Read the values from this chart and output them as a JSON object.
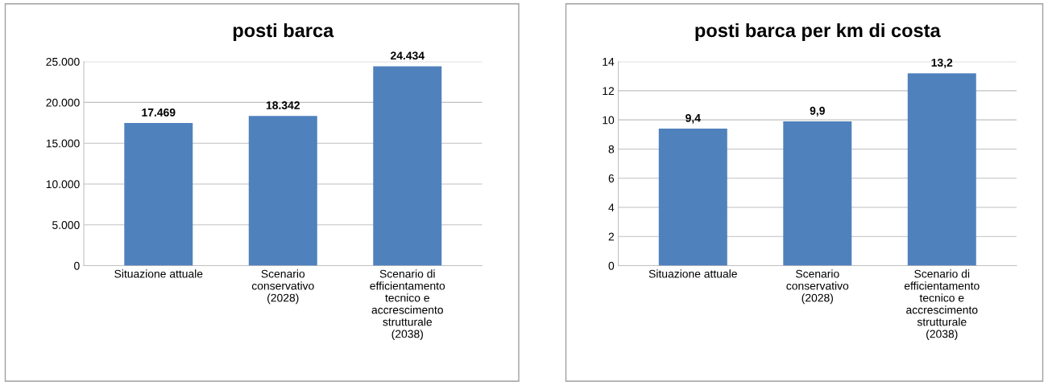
{
  "chart_data": [
    {
      "type": "bar",
      "title": "posti barca",
      "categories": [
        "Situazione attuale",
        "Scenario\nconservativo\n(2028)",
        "Scenario di\nefficientamento\ntecnico e\naccrescimento\nstrutturale\n(2038)"
      ],
      "values": [
        17469,
        18342,
        24434
      ],
      "value_labels": [
        "17.469",
        "18.342",
        "24.434"
      ],
      "color": "#4f81bd",
      "ylim": [
        0,
        25000
      ],
      "yticks": [
        0,
        {
          "value": 5000,
          "label": "5.000"
        },
        {
          "value": 10000,
          "label": "10.000"
        },
        {
          "value": 15000,
          "label": "15.000"
        },
        {
          "value": 20000,
          "label": "20.000"
        },
        {
          "value": 25000,
          "label": "25.000"
        }
      ],
      "grid": "y"
    },
    {
      "type": "bar",
      "title": "posti barca per km di costa",
      "categories": [
        "Situazione attuale",
        "Scenario\nconservativo\n(2028)",
        "Scenario di\nefficientamento\ntecnico e\naccrescimento\nstrutturale\n(2038)"
      ],
      "values": [
        9.4,
        9.9,
        13.2
      ],
      "value_labels": [
        "9,4",
        "9,9",
        "13,2"
      ],
      "color": "#4f81bd",
      "ylim": [
        0,
        14
      ],
      "yticks": [
        0,
        2,
        4,
        6,
        8,
        10,
        12,
        14
      ],
      "grid": "y"
    }
  ]
}
